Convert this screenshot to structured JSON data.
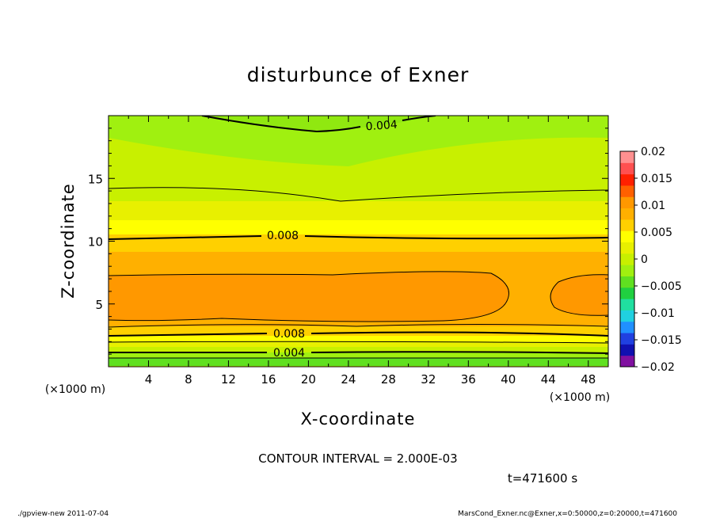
{
  "chart_data": {
    "type": "heatmap",
    "title": "disturbunce of Exner",
    "xlabel": "X-coordinate",
    "ylabel": "Z-coordinate",
    "x_unit": "(×1000 m)",
    "xlim": [
      0,
      50
    ],
    "ylim": [
      0,
      20
    ],
    "x_ticks": [
      "4",
      "8",
      "12",
      "16",
      "20",
      "24",
      "28",
      "32",
      "36",
      "40",
      "44",
      "48"
    ],
    "y_ticks": [
      "5",
      "10",
      "15"
    ],
    "colorbar": {
      "range": [
        -0.02,
        0.02
      ],
      "tick_labels": [
        "0.02",
        "0.015",
        "0.01",
        "0.005",
        "0",
        "−0.005",
        "−0.01",
        "−0.015",
        "−0.02"
      ],
      "colors": [
        "#8010a0",
        "#1010b0",
        "#2040e0",
        "#2090ff",
        "#20d0e0",
        "#20e0a0",
        "#20d040",
        "#60e020",
        "#a0f010",
        "#c8f000",
        "#e8f000",
        "#ffff00",
        "#ffd000",
        "#ffb000",
        "#ff9800",
        "#ff6000",
        "#ff2000",
        "#ff5050",
        "#ff9090"
      ]
    },
    "contour_labels": [
      "0.004",
      "0.008",
      "0.008",
      "0.004"
    ],
    "contour_interval": "CONTOUR INTERVAL = 2.000E-03",
    "time": "t=471600 s"
  },
  "footer": {
    "left": "./gpview-new   2011-07-04",
    "right": "MarsCond_Exner.nc@Exner,x=0:50000,z=0:20000,t=471600"
  }
}
